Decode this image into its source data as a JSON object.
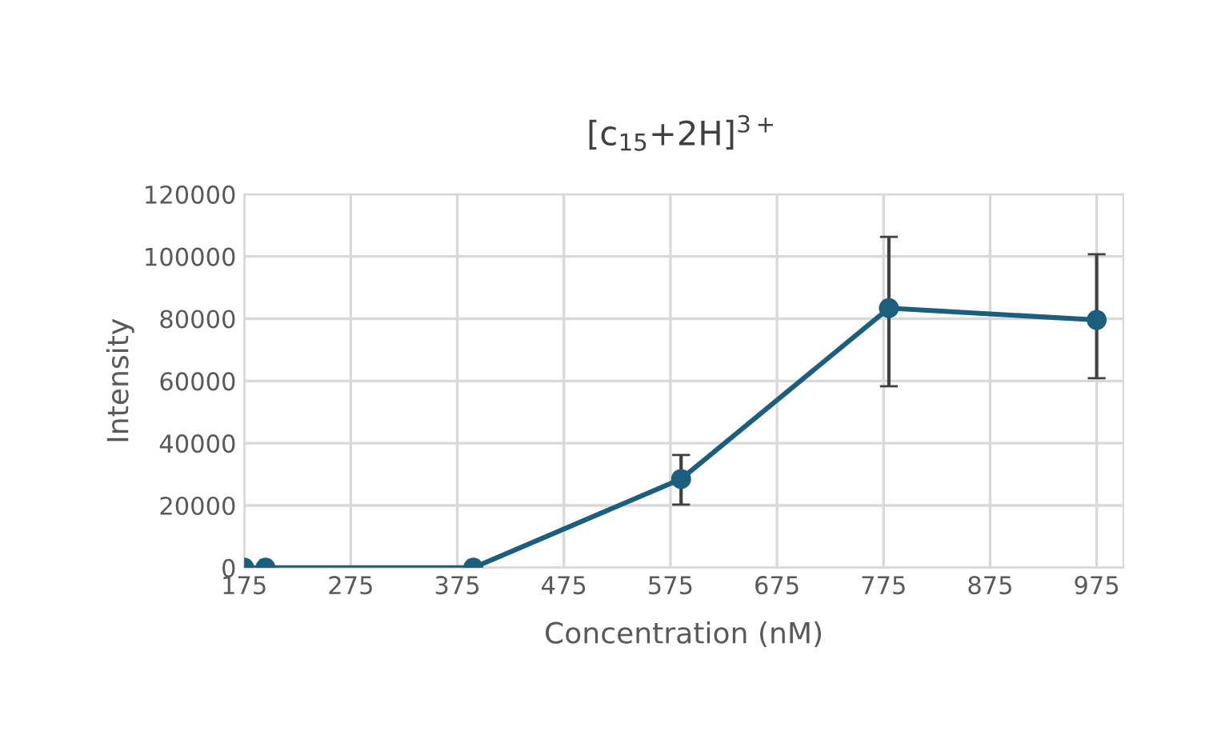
{
  "chart_data": {
    "type": "line",
    "title": "[c$_{15}$+2H]$^{3+}$",
    "xlabel": "Concentration (nM)",
    "ylabel": "Intensity",
    "x": [
      175,
      195,
      390,
      585,
      780,
      975
    ],
    "series": [
      {
        "color": "#1b5e7e",
        "values": [
          0,
          0,
          0,
          28500,
          83400,
          79600
        ],
        "errors": [
          null,
          null,
          null,
          [
            20300,
            36200
          ],
          [
            58300,
            106300
          ],
          [
            60900,
            100700
          ]
        ]
      }
    ],
    "xlim": [
      175,
      1000
    ],
    "xticks": [
      175,
      275,
      375,
      475,
      575,
      675,
      775,
      875,
      975
    ],
    "ylim": [
      0,
      120000
    ],
    "yticks": [
      0,
      20000,
      40000,
      60000,
      80000,
      100000,
      120000
    ],
    "grid": true,
    "marker": "circle",
    "line_style": "solid"
  }
}
